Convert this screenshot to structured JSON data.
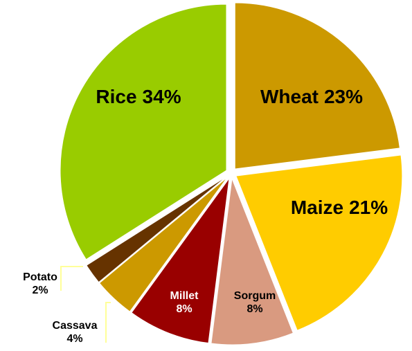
{
  "chart_data": {
    "type": "pie",
    "categories": [
      "Wheat",
      "Maize",
      "Sorgum",
      "Millet",
      "Cassava",
      "Potato",
      "Rice"
    ],
    "values": [
      23,
      21,
      8,
      8,
      4,
      2,
      34
    ],
    "value_labels": [
      "23%",
      "21%",
      "8%",
      "8%",
      "4%",
      "2%",
      "34%"
    ],
    "colors": [
      "#cc9900",
      "#ffcc00",
      "#d99a80",
      "#990000",
      "#cc9900",
      "#663300",
      "#99cc00"
    ]
  }
}
